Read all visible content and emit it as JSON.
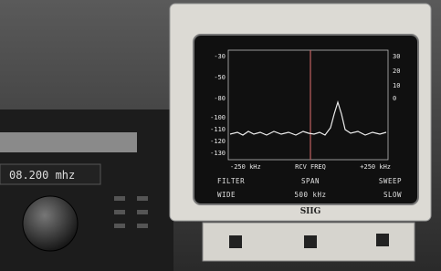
{
  "left_unit": {
    "display": "08.200 mhz"
  },
  "monitor": {
    "brand": "SIIG",
    "screen": {
      "left_scale": [
        "-30",
        "-50",
        "-80",
        "-100",
        "-110",
        "-120",
        "-130"
      ],
      "right_scale": [
        "30",
        "20",
        "10",
        "0"
      ],
      "x_labels": [
        "-250 kHz",
        "RCV FREQ",
        "+250 kHz"
      ],
      "menu_labels": [
        "FILTER",
        "SPAN",
        "SWEEP"
      ],
      "menu_values": [
        "WIDE",
        "500 kHz",
        "SLOW"
      ]
    }
  }
}
